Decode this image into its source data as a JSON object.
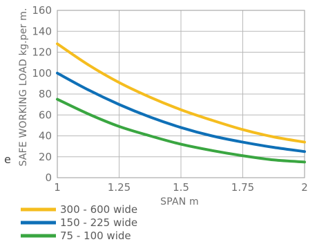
{
  "chart_data": {
    "type": "line",
    "title": "",
    "xlabel": "SPAN m",
    "ylabel": "SAFE WORKING LOAD kg.per m.",
    "xlim": [
      1,
      2
    ],
    "ylim": [
      0,
      160
    ],
    "x_ticks": [
      1,
      1.25,
      1.5,
      1.75,
      2
    ],
    "x_tick_labels": [
      "1",
      "1.25",
      "1.5",
      "1.75",
      "2"
    ],
    "y_ticks": [
      0,
      20,
      40,
      60,
      80,
      100,
      120,
      140,
      160
    ],
    "y_tick_labels": [
      "0",
      "20",
      "40",
      "60",
      "80",
      "100",
      "120",
      "140",
      "160"
    ],
    "grid": true,
    "legend_position": "bottom-left",
    "x": [
      1,
      1.125,
      1.25,
      1.375,
      1.5,
      1.625,
      1.75,
      1.875,
      2
    ],
    "series": [
      {
        "name": "300 - 600 wide",
        "color": "#f5bd1f",
        "values": [
          128,
          108,
          91,
          77,
          65,
          55,
          46,
          39,
          34
        ]
      },
      {
        "name": "150 - 225 wide",
        "color": "#0f70b7",
        "values": [
          100,
          84,
          70,
          58,
          48,
          40,
          34,
          29,
          25
        ]
      },
      {
        "name": "75 - 100 wide",
        "color": "#3aa641",
        "values": [
          75,
          61,
          49,
          40,
          32,
          26,
          21,
          17,
          15
        ]
      }
    ]
  },
  "stray_mark": "e"
}
